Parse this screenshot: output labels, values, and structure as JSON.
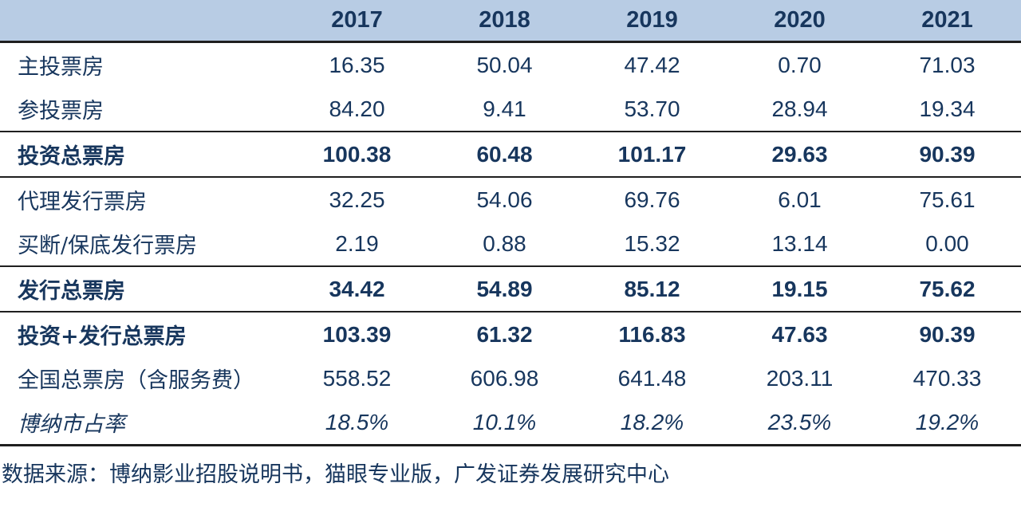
{
  "colors": {
    "header_bg": "#b8cce4",
    "text": "#17365d",
    "border": "#1f1f1f",
    "page_bg": "#ffffff"
  },
  "table": {
    "columns": [
      "",
      "2017",
      "2018",
      "2019",
      "2020",
      "2021"
    ],
    "rows": [
      {
        "label": "主投票房",
        "emphasis": "normal",
        "values": [
          "16.35",
          "50.04",
          "47.42",
          "0.70",
          "71.03"
        ]
      },
      {
        "label": "参投票房",
        "emphasis": "normal",
        "values": [
          "84.20",
          "9.41",
          "53.70",
          "28.94",
          "19.34"
        ]
      },
      {
        "label": "投资总票房",
        "emphasis": "bold",
        "values": [
          "100.38",
          "60.48",
          "101.17",
          "29.63",
          "90.39"
        ]
      },
      {
        "label": "代理发行票房",
        "emphasis": "normal",
        "values": [
          "32.25",
          "54.06",
          "69.76",
          "6.01",
          "75.61"
        ]
      },
      {
        "label": "买断/保底发行票房",
        "emphasis": "normal",
        "values": [
          "2.19",
          "0.88",
          "15.32",
          "13.14",
          "0.00"
        ]
      },
      {
        "label": "发行总票房",
        "emphasis": "bold",
        "values": [
          "34.42",
          "54.89",
          "85.12",
          "19.15",
          "75.62"
        ]
      },
      {
        "label": "投资+发行总票房",
        "emphasis": "bold",
        "values": [
          "103.39",
          "61.32",
          "116.83",
          "47.63",
          "90.39"
        ]
      },
      {
        "label": "全国总票房（含服务费）",
        "emphasis": "normal",
        "values": [
          "558.52",
          "606.98",
          "641.48",
          "203.11",
          "470.33"
        ]
      },
      {
        "label": "博纳市占率",
        "emphasis": "italic",
        "values": [
          "18.5%",
          "10.1%",
          "18.2%",
          "23.5%",
          "19.2%"
        ]
      }
    ]
  },
  "footer": {
    "source": "数据来源：博纳影业招股说明书，猫眼专业版，广发证券发展研究中心"
  }
}
